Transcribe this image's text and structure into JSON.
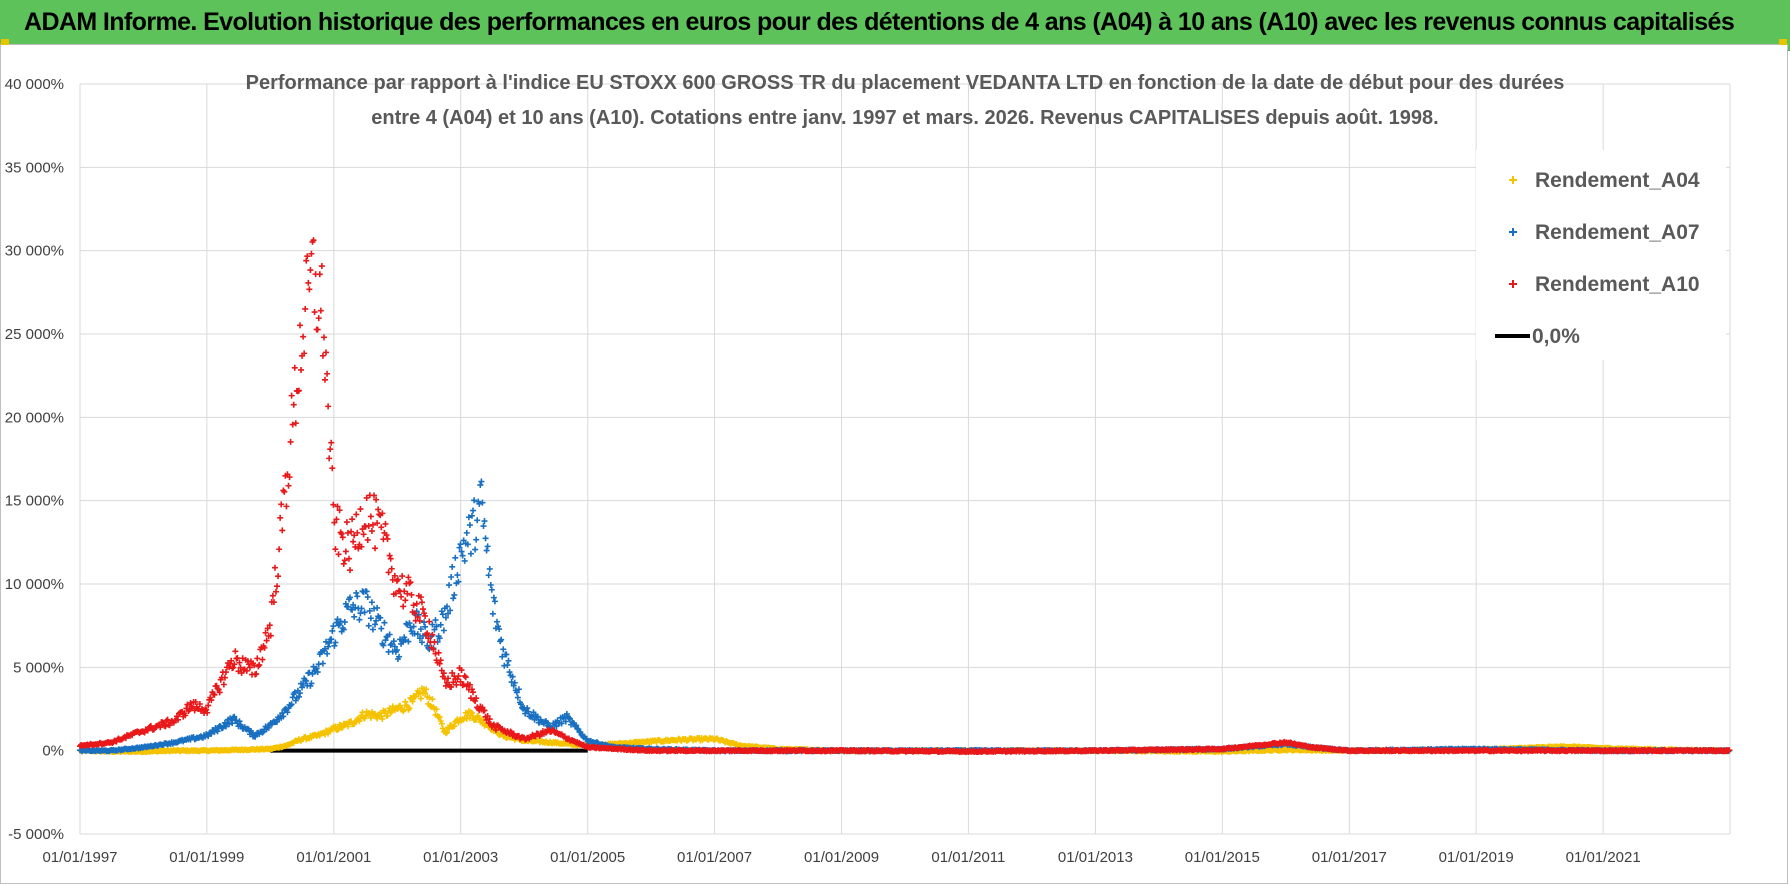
{
  "banner": {
    "title": "ADAM Informe. Evolution historique des performances en euros pour des détentions de 4 ans (A04) à 10 ans (A10) avec les revenus connus capitalisés"
  },
  "colors": {
    "banner": "#5ec25a",
    "a04": "#f5c200",
    "a07": "#1a70c0",
    "a10": "#e8191a",
    "zero": "#000000",
    "grid": "#d9d9d9"
  },
  "chart_data": {
    "type": "scatter",
    "title_lines": [
      "Performance par rapport à l'indice EU STOXX 600 GROSS TR  du placement VEDANTA LTD en fonction de la date de début pour des durées",
      "entre 4 (A04) et 10 ans (A10).  Cotations entre janv. 1997 et mars. 2026. Revenus CAPITALISES depuis août. 1998."
    ],
    "xlabel": "",
    "ylabel": "",
    "x_ticks": [
      "01/01/1997",
      "01/01/1999",
      "01/01/2001",
      "01/01/2003",
      "01/01/2005",
      "01/01/2007",
      "01/01/2009",
      "01/01/2011",
      "01/01/2013",
      "01/01/2015",
      "01/01/2017",
      "01/01/2019",
      "01/01/2021"
    ],
    "x_range": [
      "1997-01-01",
      "2023-01-01"
    ],
    "y_ticks": [
      "40 000%",
      "35 000%",
      "30 000%",
      "25 000%",
      "20 000%",
      "15 000%",
      "10 000%",
      "5 000%",
      "0%",
      "-5 000%"
    ],
    "y_range": [
      -5000,
      40000
    ],
    "grid": true,
    "legend_position": "top-right",
    "series": [
      {
        "name": "Rendement_A04",
        "marker": "+",
        "color": "#f5c200",
        "points": [
          [
            "1997-01-01",
            0
          ],
          [
            "1997-07-01",
            -50
          ],
          [
            "1998-01-01",
            -50
          ],
          [
            "1998-07-01",
            0
          ],
          [
            "1999-01-01",
            0
          ],
          [
            "1999-07-01",
            50
          ],
          [
            "2000-01-01",
            100
          ],
          [
            "2000-04-01",
            300
          ],
          [
            "2000-07-01",
            700
          ],
          [
            "2000-10-01",
            900
          ],
          [
            "2001-01-01",
            1300
          ],
          [
            "2001-04-01",
            1600
          ],
          [
            "2001-07-01",
            2200
          ],
          [
            "2001-10-01",
            2100
          ],
          [
            "2002-01-01",
            2500
          ],
          [
            "2002-04-01",
            2900
          ],
          [
            "2002-06-01",
            3600
          ],
          [
            "2002-08-01",
            2600
          ],
          [
            "2002-10-01",
            1100
          ],
          [
            "2003-01-01",
            2000
          ],
          [
            "2003-03-01",
            2200
          ],
          [
            "2003-06-01",
            1600
          ],
          [
            "2003-09-01",
            900
          ],
          [
            "2004-01-01",
            600
          ],
          [
            "2004-06-01",
            500
          ],
          [
            "2005-01-01",
            300
          ],
          [
            "2005-06-01",
            400
          ],
          [
            "2006-01-01",
            550
          ],
          [
            "2006-06-01",
            650
          ],
          [
            "2007-01-01",
            700
          ],
          [
            "2007-06-01",
            300
          ],
          [
            "2008-01-01",
            100
          ],
          [
            "2009-01-01",
            0
          ],
          [
            "2011-01-01",
            0
          ],
          [
            "2013-01-01",
            0
          ],
          [
            "2015-01-01",
            -50
          ],
          [
            "2016-01-01",
            50
          ],
          [
            "2017-01-01",
            0
          ],
          [
            "2019-01-01",
            50
          ],
          [
            "2020-06-01",
            250
          ],
          [
            "2021-01-01",
            150
          ],
          [
            "2022-01-01",
            50
          ],
          [
            "2023-01-01",
            0
          ]
        ]
      },
      {
        "name": "Rendement_A07",
        "marker": "+",
        "color": "#1a70c0",
        "points": [
          [
            "1997-01-01",
            0
          ],
          [
            "1997-07-01",
            0
          ],
          [
            "1998-01-01",
            200
          ],
          [
            "1998-07-01",
            500
          ],
          [
            "1999-01-01",
            900
          ],
          [
            "1999-06-01",
            1900
          ],
          [
            "1999-10-01",
            900
          ],
          [
            "2000-01-01",
            1500
          ],
          [
            "2000-04-01",
            2500
          ],
          [
            "2000-07-01",
            3700
          ],
          [
            "2000-10-01",
            5000
          ],
          [
            "2001-01-01",
            7000
          ],
          [
            "2001-04-01",
            8500
          ],
          [
            "2001-07-01",
            8800
          ],
          [
            "2001-10-01",
            7300
          ],
          [
            "2002-01-01",
            6000
          ],
          [
            "2002-04-01",
            7800
          ],
          [
            "2002-07-01",
            6500
          ],
          [
            "2002-10-01",
            8000
          ],
          [
            "2003-01-01",
            12000
          ],
          [
            "2003-03-01",
            13000
          ],
          [
            "2003-05-01",
            14800
          ],
          [
            "2003-07-01",
            9000
          ],
          [
            "2003-09-01",
            6000
          ],
          [
            "2004-01-01",
            2500
          ],
          [
            "2004-06-01",
            1400
          ],
          [
            "2004-09-01",
            2000
          ],
          [
            "2005-01-01",
            600
          ],
          [
            "2005-06-01",
            200
          ],
          [
            "2006-01-01",
            100
          ],
          [
            "2007-01-01",
            0
          ],
          [
            "2009-01-01",
            0
          ],
          [
            "2011-01-01",
            0
          ],
          [
            "2013-01-01",
            0
          ],
          [
            "2015-01-01",
            100
          ],
          [
            "2016-01-01",
            400
          ],
          [
            "2016-06-01",
            200
          ],
          [
            "2017-01-01",
            0
          ],
          [
            "2019-01-01",
            100
          ],
          [
            "2021-01-01",
            0
          ],
          [
            "2023-01-01",
            0
          ]
        ]
      },
      {
        "name": "Rendement_A10",
        "marker": "+",
        "color": "#e8191a",
        "points": [
          [
            "1997-01-01",
            300
          ],
          [
            "1997-07-01",
            500
          ],
          [
            "1998-01-01",
            1200
          ],
          [
            "1998-07-01",
            1800
          ],
          [
            "1998-10-01",
            2700
          ],
          [
            "1999-01-01",
            2500
          ],
          [
            "1999-06-01",
            5500
          ],
          [
            "1999-10-01",
            4700
          ],
          [
            "2000-01-01",
            7500
          ],
          [
            "2000-03-01",
            13000
          ],
          [
            "2000-05-01",
            19000
          ],
          [
            "2000-07-01",
            25000
          ],
          [
            "2000-09-01",
            28500
          ],
          [
            "2000-11-01",
            26000
          ],
          [
            "2001-01-01",
            13500
          ],
          [
            "2001-04-01",
            12000
          ],
          [
            "2001-07-01",
            14500
          ],
          [
            "2001-10-01",
            13000
          ],
          [
            "2002-01-01",
            10000
          ],
          [
            "2002-04-01",
            9000
          ],
          [
            "2002-07-01",
            7500
          ],
          [
            "2002-10-01",
            4000
          ],
          [
            "2003-01-01",
            4500
          ],
          [
            "2003-04-01",
            3000
          ],
          [
            "2003-07-01",
            1500
          ],
          [
            "2004-01-01",
            700
          ],
          [
            "2004-06-01",
            1200
          ],
          [
            "2005-01-01",
            200
          ],
          [
            "2006-01-01",
            0
          ],
          [
            "2007-01-01",
            0
          ],
          [
            "2009-01-01",
            0
          ],
          [
            "2011-01-01",
            -50
          ],
          [
            "2013-01-01",
            0
          ],
          [
            "2015-01-01",
            100
          ],
          [
            "2016-01-01",
            500
          ],
          [
            "2016-06-01",
            200
          ],
          [
            "2017-01-01",
            0
          ],
          [
            "2019-01-01",
            0
          ],
          [
            "2021-01-01",
            0
          ],
          [
            "2023-01-01",
            0
          ]
        ]
      },
      {
        "name": "0,0%",
        "marker": "line",
        "color": "#000000",
        "points": [
          [
            "2000-01-01",
            0
          ],
          [
            "2005-01-01",
            0
          ]
        ]
      }
    ]
  }
}
